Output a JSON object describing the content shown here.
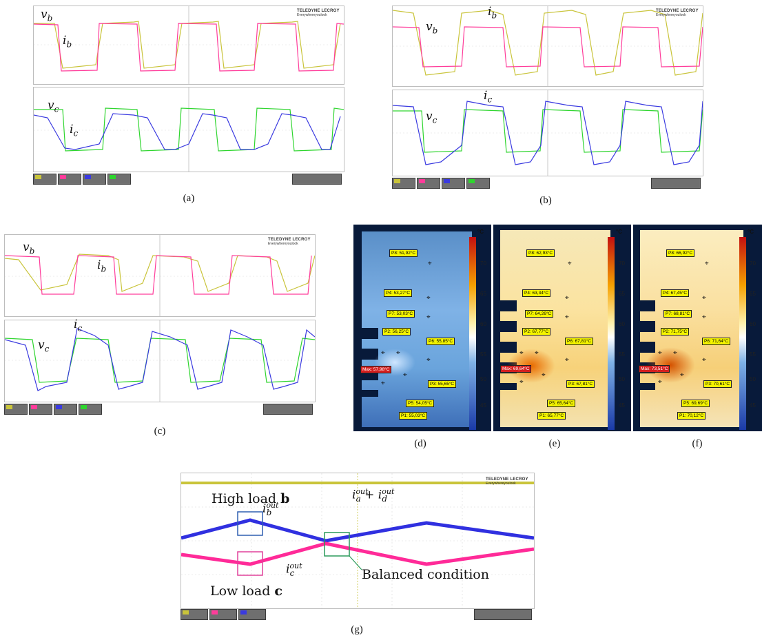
{
  "captions": {
    "a": "(a)",
    "b": "(b)",
    "c": "(c)",
    "d": "(d)",
    "e": "(e)",
    "f": "(f)",
    "g": "(g)"
  },
  "brand": {
    "name": "TELEDYNE LECROY",
    "tagline": "Everywhereyoulook"
  },
  "scope_labels": {
    "a": {
      "vb": "v",
      "vb_sub": "b",
      "ib": "i",
      "ib_sub": "b",
      "vc": "v",
      "vc_sub": "c",
      "ic": "i",
      "ic_sub": "c"
    },
    "b": {
      "vb": "v",
      "vb_sub": "b",
      "ib": "i",
      "ib_sub": "b",
      "vc": "v",
      "vc_sub": "c",
      "ic": "i",
      "ic_sub": "c"
    },
    "c": {
      "vb": "v",
      "vb_sub": "b",
      "ib": "i",
      "ib_sub": "b",
      "vc": "v",
      "vc_sub": "c",
      "ic": "i",
      "ic_sub": "c"
    }
  },
  "colors": {
    "yellow_trace": "#c9c43a",
    "pink_trace": "#ff3c9a",
    "blue_trace": "#3a3ae0",
    "green_trace": "#2ed52e",
    "box_blue": "#2f5fb0",
    "box_pink": "#e0409a",
    "box_green": "#2a9a5a"
  },
  "thermal": {
    "unit": "°C",
    "ticks": [
      "70",
      "65",
      "60",
      "55",
      "50",
      "45"
    ],
    "d": {
      "tags": [
        "P8: 51,92°C",
        "P4: 53,27°C",
        "P7: 53,03°C",
        "P2: 56,25°C",
        "P6: 55,85°C",
        "Max: 57,98°C",
        "P3: 55,65°C",
        "P5: 54,05°C",
        "P1: 55,03°C"
      ]
    },
    "e": {
      "tags": [
        "P8: 62,93°C",
        "P4: 63,34°C",
        "P7: 64,26°C",
        "P2: 67,77°C",
        "P6: 67,81°C",
        "Max: 69,64°C",
        "P3: 67,81°C",
        "P5: 65,64°C",
        "P1: 65,77°C"
      ]
    },
    "f": {
      "tags": [
        "P8: 66,92°C",
        "P4: 67,45°C",
        "P7: 68,81°C",
        "P2: 71,75°C",
        "P6: 71,64°C",
        "Max: 73,51°C",
        "P3: 70,61°C",
        "P5: 69,69°C",
        "P1: 70,12°C"
      ]
    }
  },
  "g": {
    "high_load": "High load ",
    "high_load_bold": "b",
    "low_load": "Low load ",
    "low_load_bold": "c",
    "balanced": "Balanced condition",
    "sum_label_a": "i",
    "sum_sup": "out",
    "sum_sub_a": "a",
    "sum_plus": " + ",
    "sum_sub_d": "d",
    "ib_out": "i",
    "ib_out_sub": "b",
    "ic_out_sub": "c"
  }
}
